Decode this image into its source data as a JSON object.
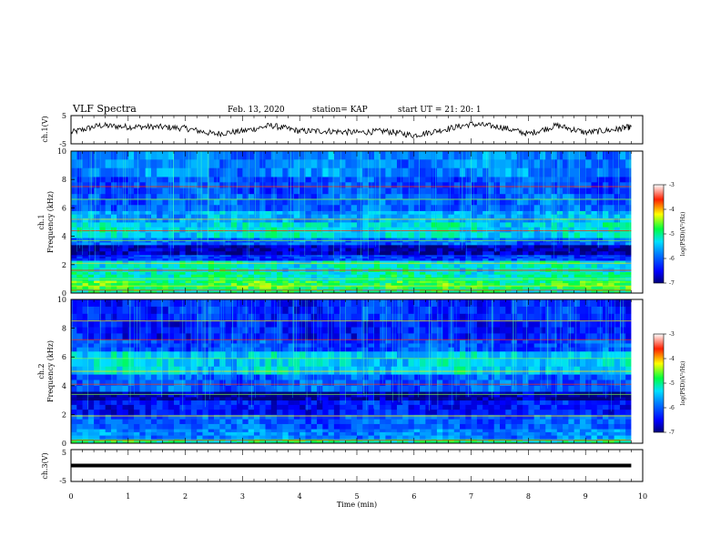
{
  "header": {
    "title": "VLF Spectra",
    "date": "Feb. 13, 2020",
    "station": "station= KAP",
    "start": "start  UT  =   21: 20: 1"
  },
  "chart_data": [
    {
      "type": "line",
      "ylabel": "ch.1(V)",
      "xlim": [
        0,
        10
      ],
      "ylim": [
        -5,
        5
      ],
      "yticks": [
        "5",
        "-5"
      ],
      "x": [
        0,
        0.5,
        1,
        1.5,
        2,
        2.5,
        3,
        3.5,
        4,
        4.5,
        5,
        5.5,
        6,
        6.5,
        7,
        7.5,
        8,
        8.5,
        9,
        9.5,
        9.8
      ],
      "values": [
        -1,
        1.5,
        1,
        1,
        0.5,
        -1.5,
        -0.5,
        1.5,
        -0.5,
        -0.5,
        -1,
        -0.5,
        -2,
        0,
        2,
        1,
        -1.5,
        1.5,
        -1,
        0,
        1
      ]
    },
    {
      "type": "heatmap",
      "ylabel": "Frequency (kHz)",
      "channel_label": "ch.1",
      "xlim": [
        0,
        10
      ],
      "ylim": [
        0,
        10
      ],
      "yticks": [
        "10",
        "8",
        "6",
        "4",
        "2",
        "0"
      ],
      "colorbar": {
        "label": "log(PSD)(V²/Hz)",
        "ticks": [
          "-3",
          "-4",
          "-5",
          "-6",
          "-7"
        ],
        "range": [
          -7,
          -3
        ]
      },
      "bands": [
        {
          "f": [
            0,
            0.3
          ],
          "v": -5.0
        },
        {
          "f": [
            0.3,
            0.9
          ],
          "v": -4.8
        },
        {
          "f": [
            0.9,
            1.5
          ],
          "v": -5.1
        },
        {
          "f": [
            1.5,
            2.3
          ],
          "v": -5.2
        },
        {
          "f": [
            2.3,
            2.7
          ],
          "v": -6.2
        },
        {
          "f": [
            2.7,
            3.4
          ],
          "v": -6.8
        },
        {
          "f": [
            3.4,
            3.9
          ],
          "v": -6.0
        },
        {
          "f": [
            3.9,
            5.0
          ],
          "v": -5.3
        },
        {
          "f": [
            5.0,
            5.8
          ],
          "v": -5.6
        },
        {
          "f": [
            5.8,
            7.0
          ],
          "v": -6.0
        },
        {
          "f": [
            7.0,
            8.2
          ],
          "v": -6.1
        },
        {
          "f": [
            8.2,
            10
          ],
          "v": -5.8
        }
      ],
      "lines_khz": [
        0.2,
        0.5,
        1.0,
        1.6,
        2.1,
        3.7,
        4.4,
        5.2,
        6.6,
        7.5
      ]
    },
    {
      "type": "heatmap",
      "ylabel": "Frequency (kHz)",
      "channel_label": "ch.2",
      "xlim": [
        0,
        10
      ],
      "ylim": [
        0,
        10
      ],
      "yticks": [
        "10",
        "8",
        "6",
        "4",
        "2",
        "0"
      ],
      "colorbar": {
        "label": "log(PSD)(V²/Hz)",
        "ticks": [
          "-3",
          "-4",
          "-5",
          "-6",
          "-7"
        ],
        "range": [
          -7,
          -3
        ]
      },
      "bands": [
        {
          "f": [
            0,
            0.3
          ],
          "v": -5.0
        },
        {
          "f": [
            0.3,
            1.0
          ],
          "v": -5.8
        },
        {
          "f": [
            1.0,
            2.0
          ],
          "v": -6.0
        },
        {
          "f": [
            2.0,
            3.0
          ],
          "v": -6.4
        },
        {
          "f": [
            3.0,
            3.6
          ],
          "v": -6.9
        },
        {
          "f": [
            3.6,
            4.8
          ],
          "v": -6.0
        },
        {
          "f": [
            4.8,
            6.4
          ],
          "v": -5.4
        },
        {
          "f": [
            6.4,
            7.2
          ],
          "v": -6.1
        },
        {
          "f": [
            7.2,
            8.5
          ],
          "v": -6.4
        },
        {
          "f": [
            8.5,
            10
          ],
          "v": -6.3
        }
      ],
      "lines_khz": [
        0.2,
        1.9,
        3.4,
        4.1,
        5.0,
        5.9,
        7.2,
        8.5
      ]
    },
    {
      "type": "line",
      "ylabel": "ch.3(V)",
      "xlabel": "Time (min)",
      "xlim": [
        0,
        10
      ],
      "ylim": [
        -5,
        5
      ],
      "yticks": [
        "5",
        "-5"
      ],
      "xticks": [
        "0",
        "1",
        "2",
        "3",
        "4",
        "5",
        "6",
        "7",
        "8",
        "9",
        "10"
      ],
      "x": [
        0,
        9.8
      ],
      "values": [
        0,
        0
      ]
    }
  ]
}
